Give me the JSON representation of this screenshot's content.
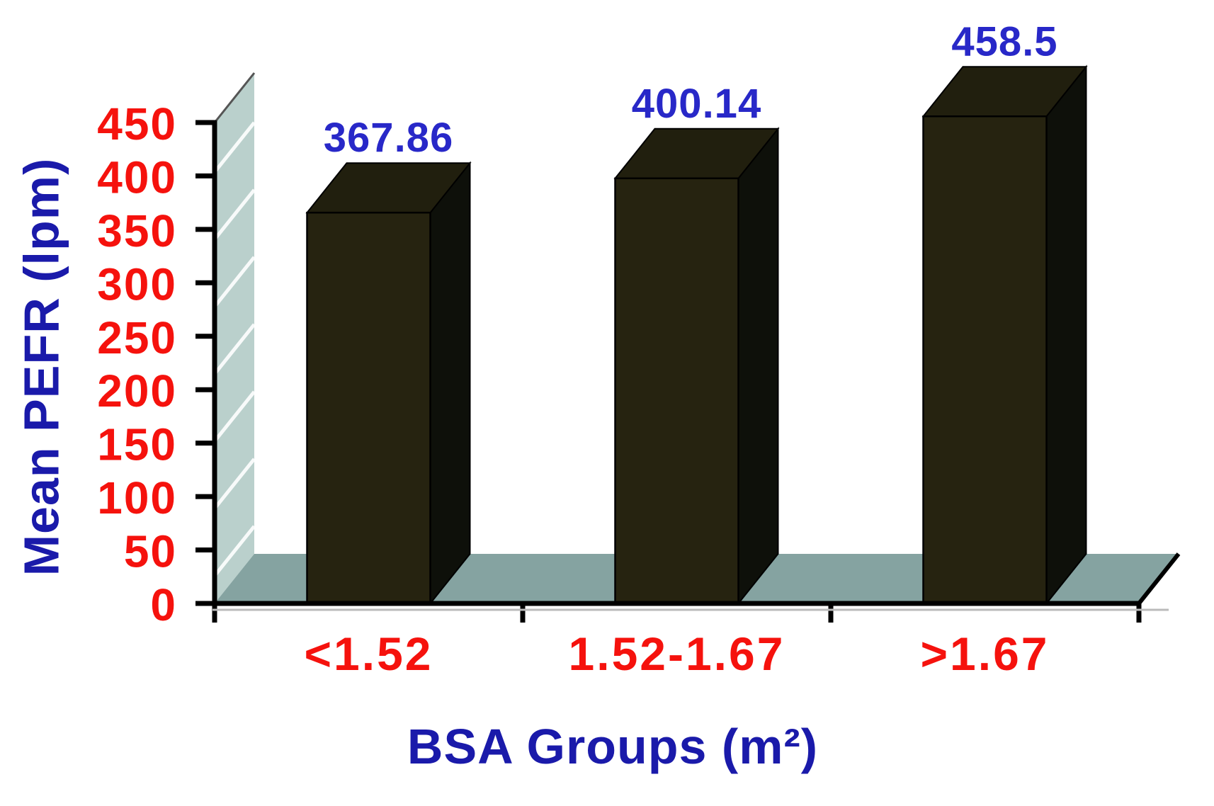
{
  "figure": {
    "background": "#ffffff"
  },
  "chart_data": {
    "type": "bar",
    "style": "3d-column",
    "title": "",
    "xlabel": "BSA Groups (m²)",
    "ylabel": "Mean PEFR (lpm)",
    "categories": [
      "<1.52",
      "1.52-1.67",
      ">1.67"
    ],
    "values": [
      367.86,
      400.14,
      458.5
    ],
    "value_labels": [
      "367.86",
      "400.14",
      "458.5"
    ],
    "y_ticks": [
      0,
      50,
      100,
      150,
      200,
      250,
      300,
      350,
      400,
      450
    ],
    "ylim": [
      0,
      450
    ],
    "grid": false,
    "legend": "none",
    "colors": {
      "bar_front": "#262310",
      "bar_top": "#211f0e",
      "bar_side": "#0e100a",
      "wall": "#bad0cc",
      "wall_stripe": "#ffffff",
      "floor": "#85a3a1",
      "tick_label": "#f5120d",
      "category_label": "#f5120d",
      "value_label": "#2828c8",
      "axis_title": "#1a1aaa",
      "axis_line": "#000000"
    }
  }
}
